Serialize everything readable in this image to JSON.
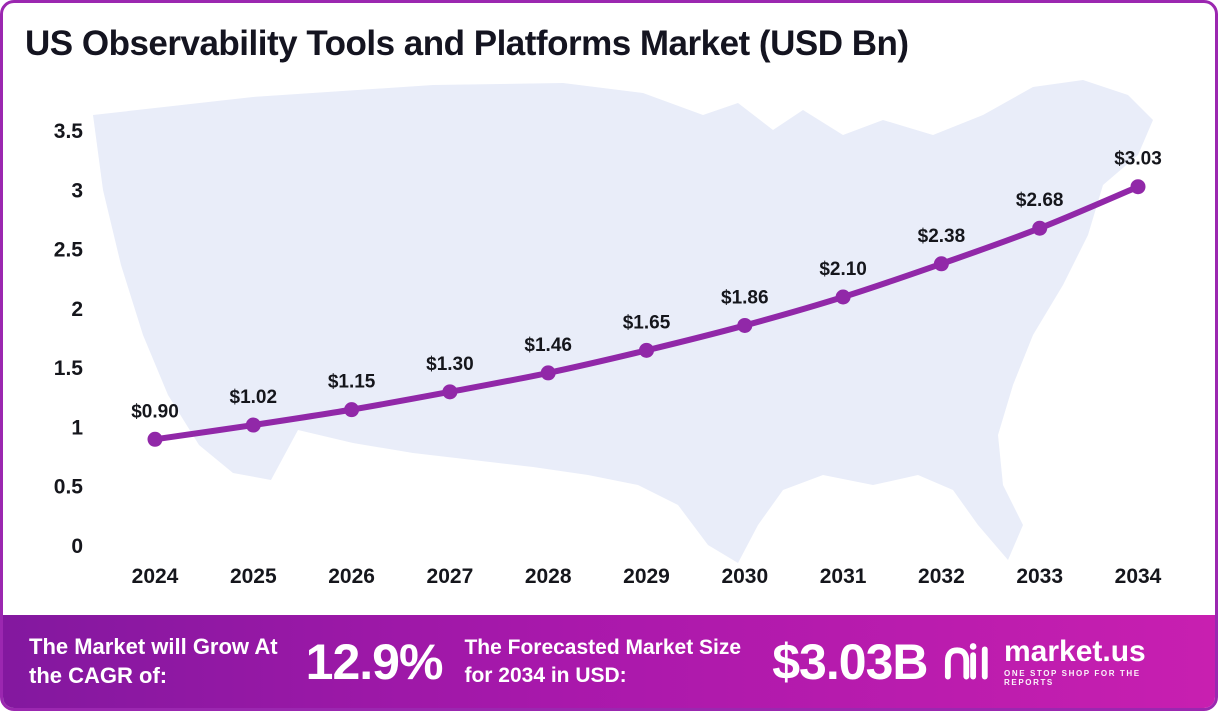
{
  "title": "US Observability Tools and Platforms Market (USD Bn)",
  "chart_data": {
    "type": "line",
    "title": "US Observability Tools and Platforms Market (USD Bn)",
    "categories": [
      "2024",
      "2025",
      "2026",
      "2027",
      "2028",
      "2029",
      "2030",
      "2031",
      "2032",
      "2033",
      "2034"
    ],
    "values": [
      0.9,
      1.02,
      1.15,
      1.3,
      1.46,
      1.65,
      1.86,
      2.1,
      2.38,
      2.68,
      3.03
    ],
    "point_labels": [
      "$0.90",
      "$1.02",
      "$1.15",
      "$1.30",
      "$1.46",
      "$1.65",
      "$1.86",
      "$2.10",
      "$2.38",
      "$2.68",
      "$3.03"
    ],
    "xlabel": "",
    "ylabel": "",
    "ylim": [
      0,
      3.5
    ],
    "yticks": [
      0,
      0.5,
      1,
      1.5,
      2,
      2.5,
      3,
      3.5
    ],
    "ytick_labels": [
      "0",
      "0.5",
      "1",
      "1.5",
      "2",
      "2.5",
      "3",
      "3.5"
    ],
    "grid": false,
    "legend": "none",
    "line_color": "#9128a8",
    "marker_color": "#9128a8",
    "label_color": "#15161c",
    "axis_text_color": "#15161c"
  },
  "footer": {
    "cagr_label": "The Market will Grow At the CAGR of:",
    "cagr_value": "12.9%",
    "forecast_label": "The Forecasted Market Size for 2034 in USD:",
    "forecast_value": "$3.03B",
    "brand": "market.us",
    "brand_tagline": "ONE STOP SHOP FOR THE REPORTS"
  }
}
